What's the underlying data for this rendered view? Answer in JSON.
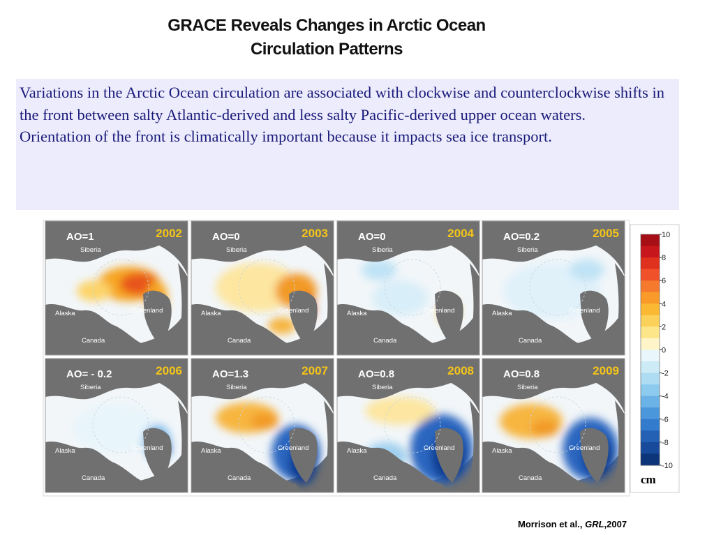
{
  "title": {
    "line1": "GRACE Reveals Changes in Arctic Ocean",
    "line2": "Circulation Patterns"
  },
  "body": {
    "paragraphs": [
      "Variations in the Arctic Ocean circulation are associated with clockwise and counterclockwise shifts in the front between salty Atlantic-derived and less salty Pacific-derived upper ocean waters.",
      "Orientation of the front is climatically important because it impacts sea ice transport."
    ]
  },
  "maps": [
    {
      "ao": "AO=1",
      "year": "2002",
      "siberia": "Siberia",
      "alaska": "Alaska",
      "greenland": "Greenland",
      "canada": "Canada"
    },
    {
      "ao": "AO=0",
      "year": "2003",
      "siberia": "Siberia",
      "alaska": "Alaska",
      "greenland": "Greenland",
      "canada": "Canada"
    },
    {
      "ao": "AO=0",
      "year": "2004",
      "siberia": "Siberia",
      "alaska": "Alaska",
      "greenland": "Greenland",
      "canada": "Canada"
    },
    {
      "ao": "AO=0.2",
      "year": "2005",
      "siberia": "Siberia",
      "alaska": "Alaska",
      "greenland": "Greenland",
      "canada": "Canada"
    },
    {
      "ao": "AO= - 0.2",
      "year": "2006",
      "siberia": "Siberia",
      "alaska": "Alaska",
      "greenland": "Greenland",
      "canada": "Canada"
    },
    {
      "ao": "AO=1.3",
      "year": "2007",
      "siberia": "Siberia",
      "alaska": "Alaska",
      "greenland": "Greenland",
      "canada": "Canada"
    },
    {
      "ao": "AO=0.8",
      "year": "2008",
      "siberia": "Siberia",
      "alaska": "Alaska",
      "greenland": "Greenland",
      "canada": "Canada"
    },
    {
      "ao": "AO=0.8",
      "year": "2009",
      "siberia": "Siberia",
      "alaska": "Alaska",
      "greenland": "Greenland",
      "canada": "Canada"
    }
  ],
  "colorbar": {
    "range": [
      -10,
      10
    ],
    "ticks": [
      10,
      8,
      6,
      4,
      2,
      0,
      -2,
      -4,
      -6,
      -8,
      -10
    ],
    "unit": "cm",
    "colors": [
      "#a50f15",
      "#c8161d",
      "#e0301e",
      "#f0502a",
      "#f57a2e",
      "#f99a2a",
      "#fbb832",
      "#fcd15a",
      "#fde68a",
      "#fff5c8",
      "#e9f6fb",
      "#cdebf7",
      "#aedcf3",
      "#8ccaee",
      "#6bb3e6",
      "#4b97dc",
      "#337bcc",
      "#2461b5",
      "#174a9a",
      "#0d3579"
    ]
  },
  "citation": {
    "authors": "Morrison et al., ",
    "journal": "GRL",
    "year": ",2007"
  }
}
